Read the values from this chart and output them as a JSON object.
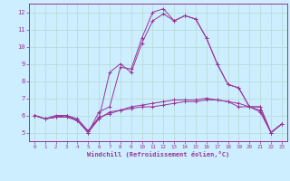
{
  "xlabel": "Windchill (Refroidissement éolien,°C)",
  "bg_color": "#cceeff",
  "grid_color": "#aaddcc",
  "line_color": "#993399",
  "xlim": [
    -0.5,
    23.5
  ],
  "ylim": [
    4.5,
    12.5
  ],
  "yticks": [
    5,
    6,
    7,
    8,
    9,
    10,
    11,
    12
  ],
  "xticks": [
    0,
    1,
    2,
    3,
    4,
    5,
    6,
    7,
    8,
    9,
    10,
    11,
    12,
    13,
    14,
    15,
    16,
    17,
    18,
    19,
    20,
    21,
    22,
    23
  ],
  "series": [
    [
      6.0,
      5.8,
      6.0,
      6.0,
      5.8,
      5.1,
      5.8,
      6.2,
      6.3,
      6.4,
      6.5,
      6.5,
      6.6,
      6.7,
      6.8,
      6.8,
      6.9,
      6.9,
      6.8,
      6.5,
      6.5,
      6.5,
      5.0,
      5.5
    ],
    [
      6.0,
      5.8,
      5.9,
      5.9,
      5.7,
      5.1,
      5.9,
      6.1,
      6.3,
      6.5,
      6.6,
      6.7,
      6.8,
      6.9,
      6.9,
      6.9,
      7.0,
      6.9,
      6.8,
      6.7,
      6.5,
      6.5,
      5.0,
      5.5
    ],
    [
      6.0,
      5.8,
      5.9,
      6.0,
      5.7,
      5.0,
      5.8,
      8.5,
      9.0,
      8.5,
      10.2,
      11.5,
      11.9,
      11.5,
      11.8,
      11.6,
      10.5,
      9.0,
      7.8,
      7.6,
      6.5,
      6.3,
      5.0,
      5.5
    ],
    [
      6.0,
      5.8,
      5.9,
      6.0,
      5.7,
      5.0,
      6.2,
      6.5,
      8.8,
      8.7,
      10.5,
      12.0,
      12.2,
      11.5,
      11.8,
      11.6,
      10.5,
      9.0,
      7.8,
      7.6,
      6.5,
      6.2,
      5.0,
      5.5
    ]
  ]
}
